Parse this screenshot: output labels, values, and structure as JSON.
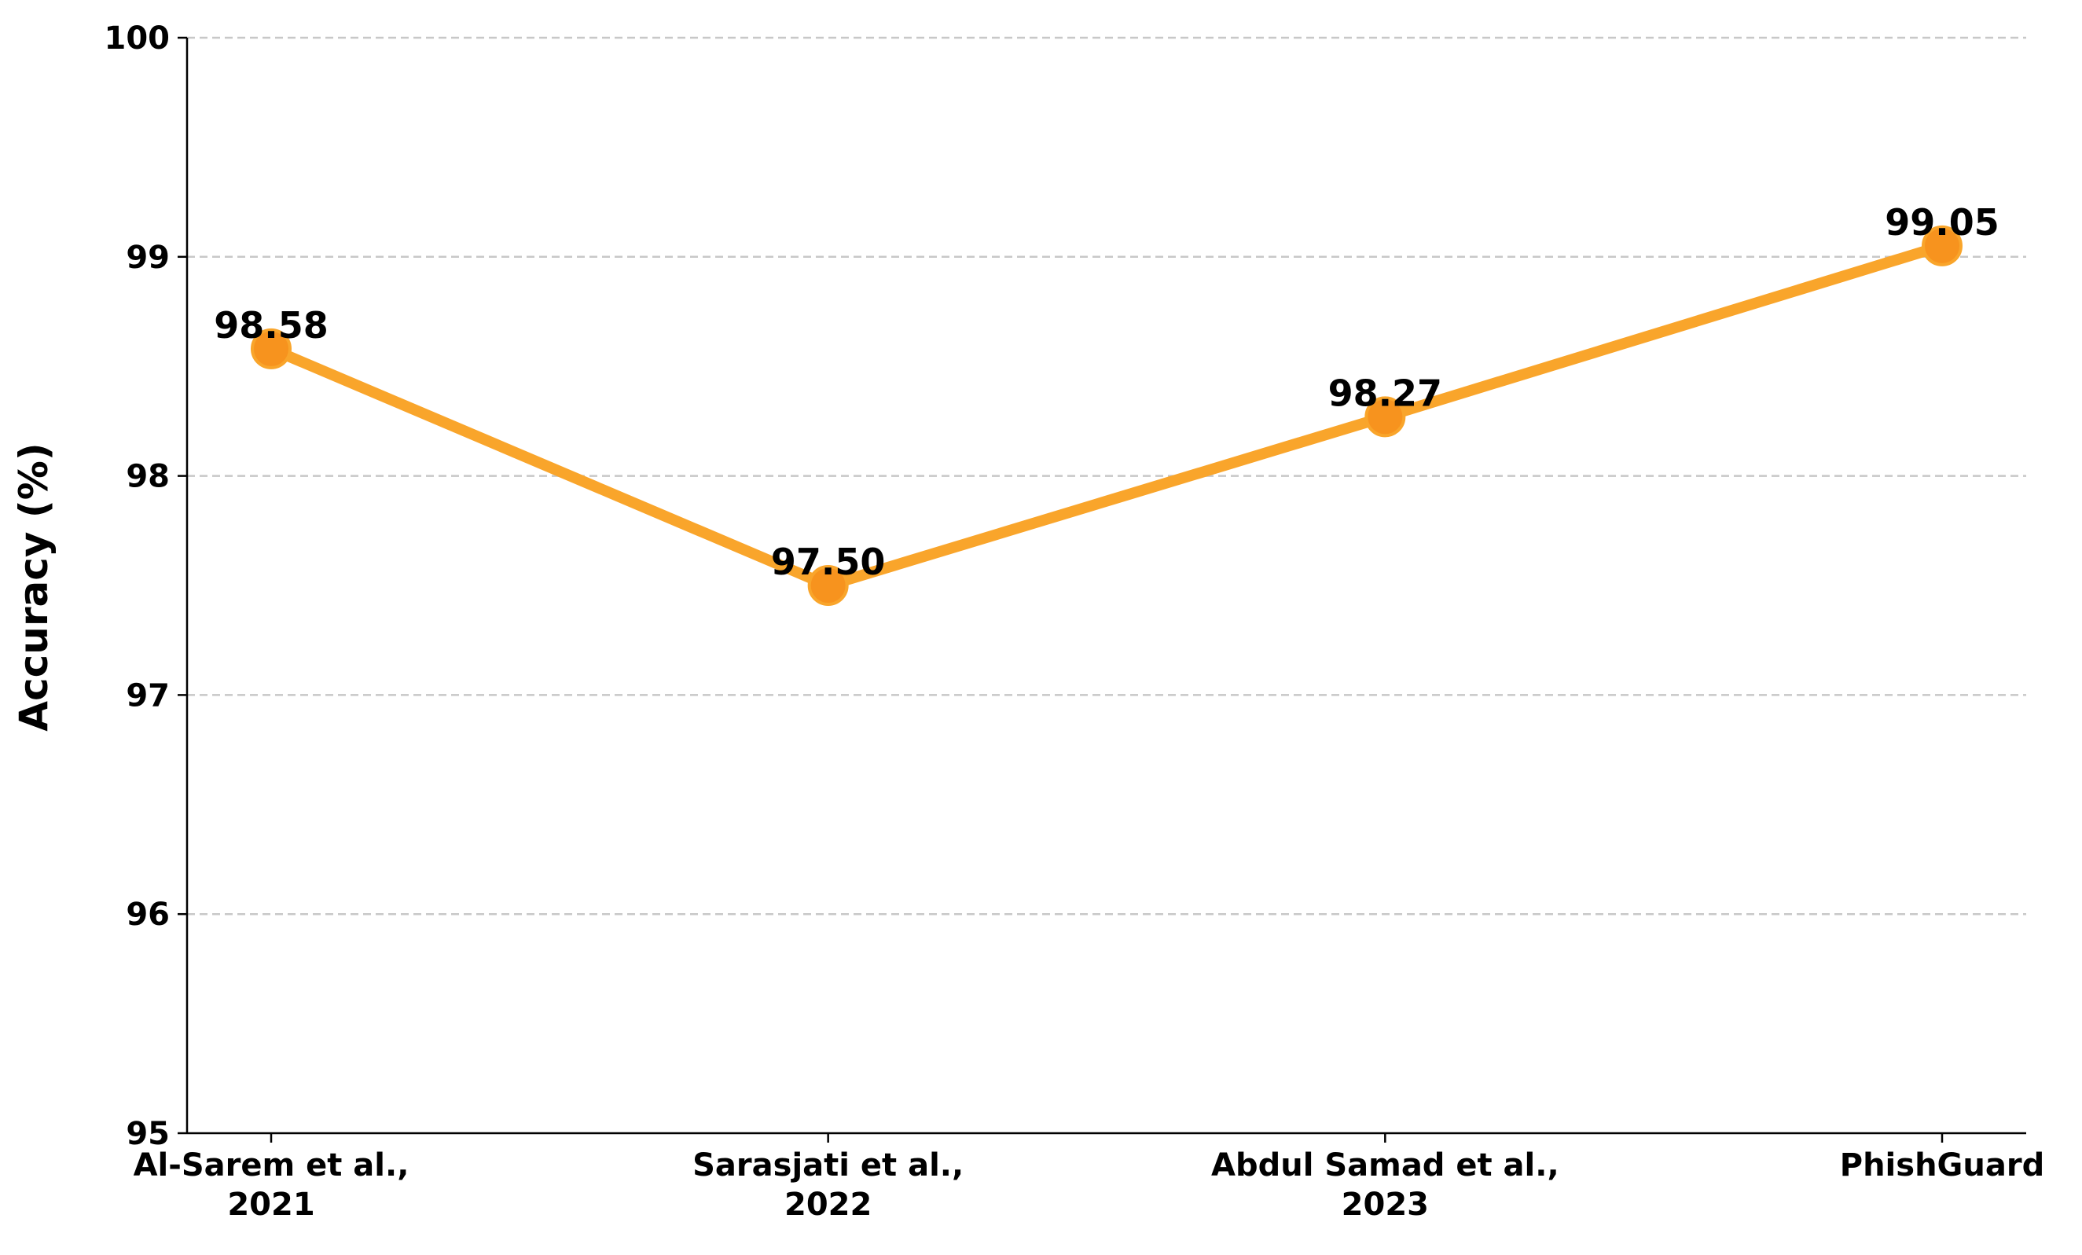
{
  "chart_data": {
    "type": "line",
    "categories": [
      [
        "Al-Sarem et al.,",
        "2021"
      ],
      [
        "Sarasjati et al.,",
        "2022"
      ],
      [
        "Abdul Samad et al.,",
        "2023"
      ],
      [
        "PhishGuard"
      ]
    ],
    "series": [
      {
        "values": [
          98.58,
          97.5,
          98.27,
          99.05
        ],
        "labels": [
          "98.58",
          "97.50",
          "98.27",
          "99.05"
        ],
        "color": "#f9a52b",
        "marker_color": "#f7931e"
      }
    ],
    "xlabel": "",
    "ylabel": "Accuracy (%)",
    "ylim": [
      95,
      100
    ],
    "yticks": [
      "95",
      "96",
      "97",
      "98",
      "99",
      "100"
    ],
    "grid": "y-dashed",
    "legend": "none"
  }
}
